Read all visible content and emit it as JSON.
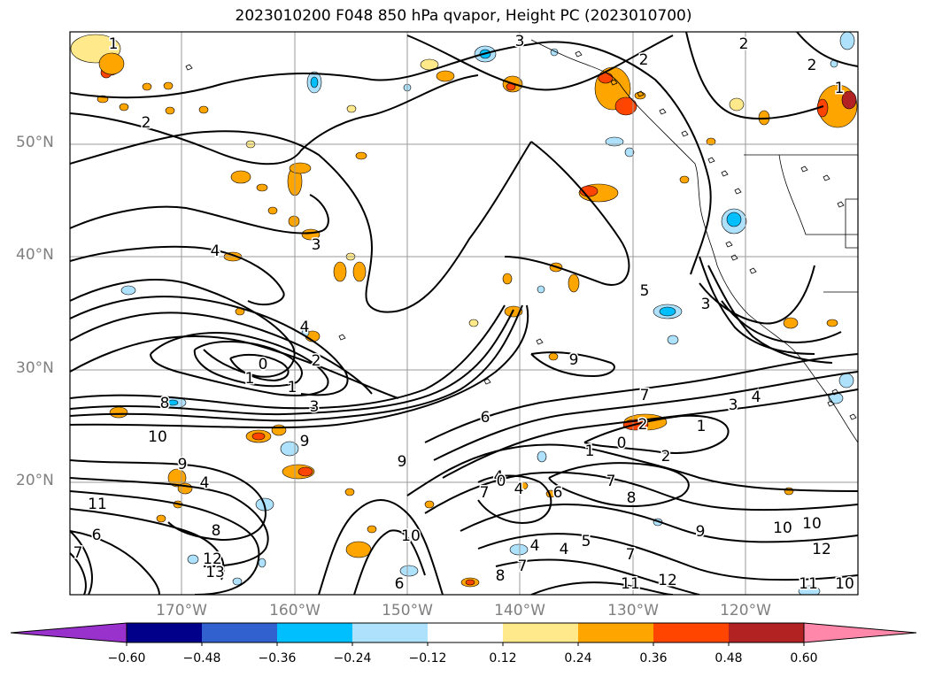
{
  "title": "2023010200 F048 850 hPa qvapor, Height PC (2023010700)",
  "axes": {
    "lat_labels": [
      "50°N",
      "40°N",
      "30°N",
      "20°N"
    ],
    "lon_labels": [
      "170°W",
      "160°W",
      "150°W",
      "140°W",
      "130°W",
      "120°W"
    ]
  },
  "colorbar": {
    "colors": [
      "#9932cc",
      "#00008b",
      "#3160cf",
      "#00bfff",
      "#aee1fb",
      "#ffffff",
      "#ffe98a",
      "#ffa500",
      "#ff4500",
      "#b22222",
      "#ff88aa"
    ],
    "tick_labels": [
      "−0.60",
      "−0.48",
      "−0.36",
      "−0.24",
      "−0.12",
      "0.12",
      "0.24",
      "0.36",
      "0.48",
      "0.60"
    ],
    "extend": "both"
  },
  "contour_labels": [
    "1",
    "2",
    "2",
    "2",
    "2",
    "3",
    "3",
    "4",
    "4",
    "0",
    "1",
    "2",
    "3",
    "5",
    "4",
    "1",
    "2",
    "0",
    "7",
    "3",
    "4",
    "1",
    "2",
    "0",
    "1",
    "9",
    "6",
    "8",
    "10",
    "9",
    "9",
    "7",
    "4",
    "11",
    "9",
    "8",
    "10",
    "12",
    "13",
    "10",
    "4",
    "7",
    "4",
    "6",
    "7",
    "8",
    "9",
    "6",
    "5",
    "4",
    "7",
    "8",
    "12",
    "11",
    "10",
    "12",
    "11",
    "10",
    "3",
    "6",
    "7",
    "1"
  ]
}
